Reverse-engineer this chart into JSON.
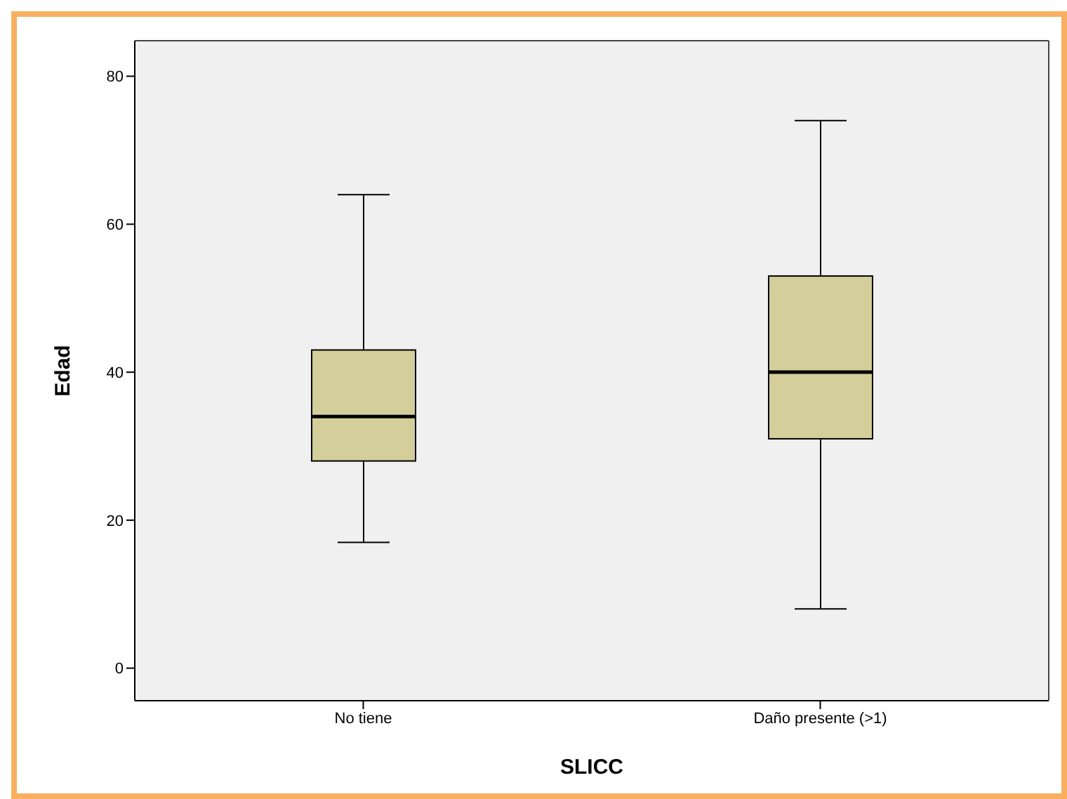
{
  "chart_data": {
    "type": "box",
    "xlabel": "SLICC",
    "ylabel": "Edad",
    "categories": [
      "No tiene",
      "Daño presente (>1)"
    ],
    "boxes": [
      {
        "low": 17,
        "q1": 28,
        "median": 34,
        "q3": 43,
        "high": 64
      },
      {
        "low": 8,
        "q1": 31,
        "median": 40,
        "q3": 53,
        "high": 74
      }
    ],
    "color": "#d4cf9a",
    "ylim": [
      -4.4,
      84.8
    ],
    "yticks": [
      0,
      20,
      40,
      60,
      80
    ],
    "grid": false
  }
}
